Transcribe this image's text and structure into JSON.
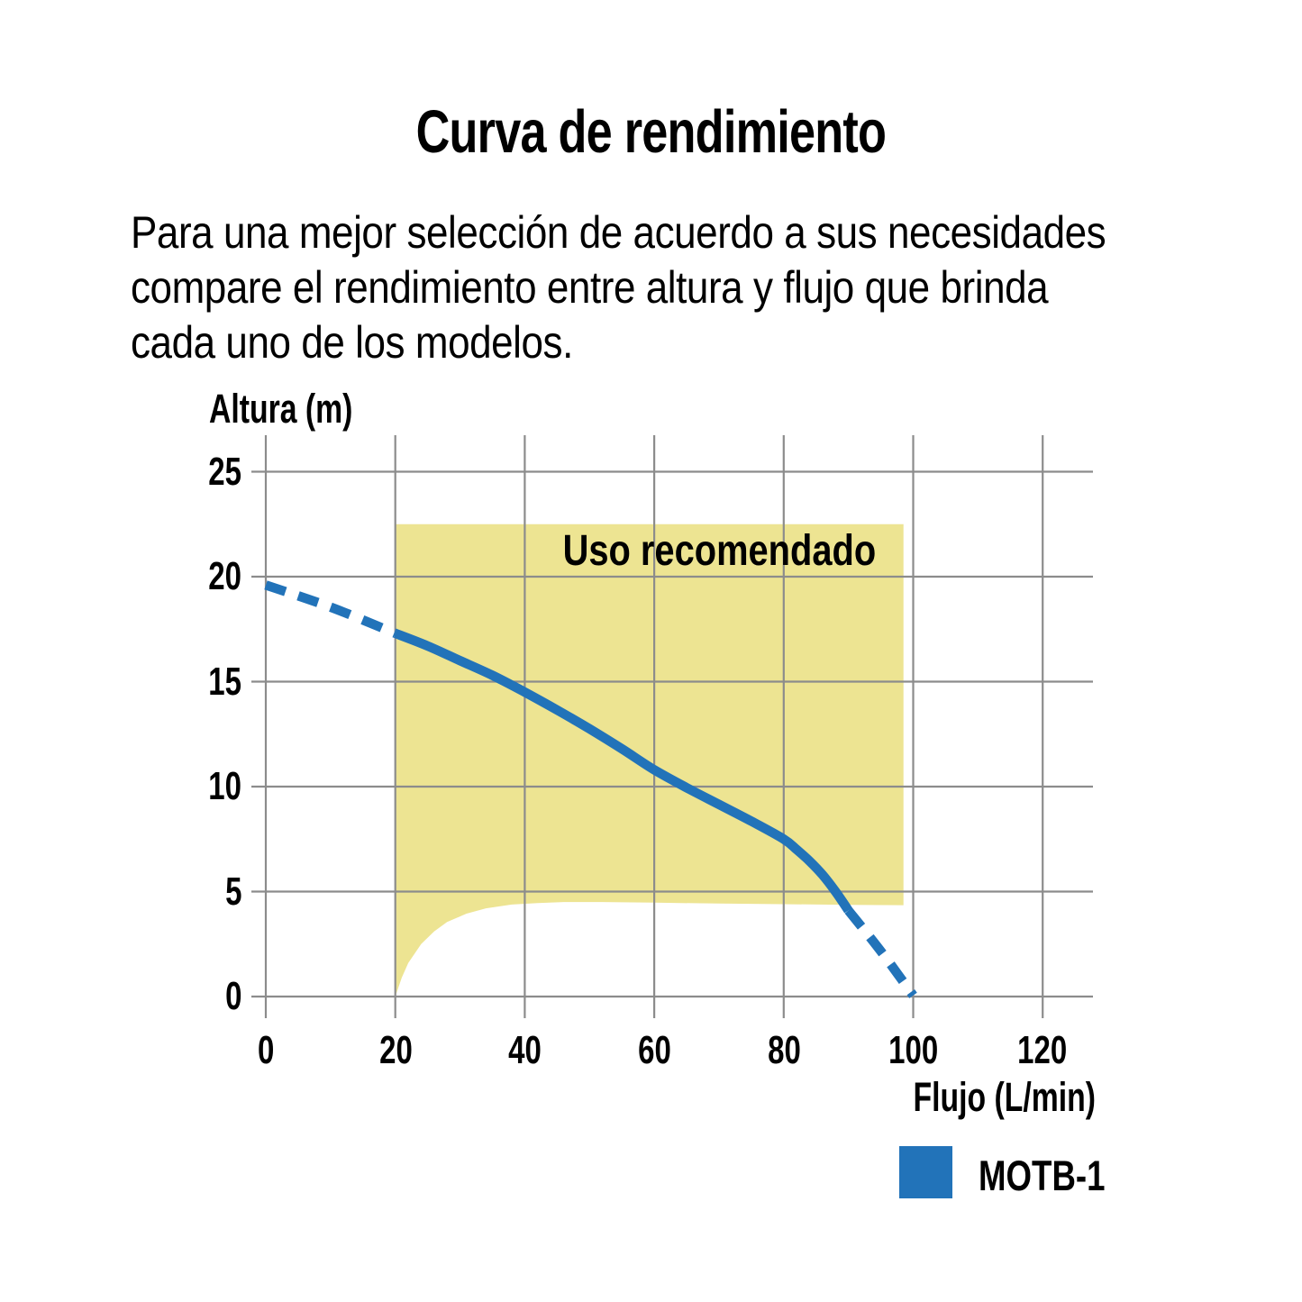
{
  "figure": {
    "title": "Curva de rendimiento",
    "description_lines": [
      "Para una mejor selección de acuerdo a sus necesidades",
      "compare el rendimiento entre altura y flujo que brinda",
      "cada uno de los modelos."
    ]
  },
  "colors": {
    "series_blue": "#2273B9",
    "region_yellow": "#EDE492",
    "grid_gray": "#8C8C8C",
    "text_black": "#000000"
  },
  "chart_data": {
    "type": "line",
    "title": "Curva de rendimiento",
    "xlabel": "Flujo (L/min)",
    "ylabel": "Altura (m)",
    "xlim": [
      0,
      120
    ],
    "ylim": [
      0,
      25
    ],
    "x_ticks": [
      0,
      20,
      40,
      60,
      80,
      100,
      120
    ],
    "y_ticks": [
      0,
      5,
      10,
      15,
      20,
      25
    ],
    "grid": true,
    "recommended_region": {
      "label": "Uso recomendado",
      "x_range": [
        20,
        98.5
      ],
      "y_top": 22.5,
      "bottom_edge": [
        [
          20,
          0
        ],
        [
          21,
          0.9
        ],
        [
          22,
          1.6
        ],
        [
          24,
          2.5
        ],
        [
          26,
          3.1
        ],
        [
          28,
          3.55
        ],
        [
          31,
          3.95
        ],
        [
          34,
          4.2
        ],
        [
          38,
          4.38
        ],
        [
          42,
          4.45
        ],
        [
          46,
          4.5
        ],
        [
          52,
          4.5
        ],
        [
          60,
          4.47
        ],
        [
          70,
          4.43
        ],
        [
          80,
          4.4
        ],
        [
          90,
          4.37
        ],
        [
          98.5,
          4.35
        ]
      ]
    },
    "series": [
      {
        "name": "MOTB-1",
        "color": "#2273B9",
        "segments": [
          {
            "style": "dashed",
            "points": [
              [
                0,
                19.6
              ],
              [
                10,
                18.55
              ],
              [
                20,
                17.3
              ]
            ]
          },
          {
            "style": "solid",
            "points": [
              [
                20,
                17.3
              ],
              [
                25,
                16.7
              ],
              [
                30,
                16.0
              ],
              [
                35,
                15.3
              ],
              [
                40,
                14.5
              ],
              [
                45,
                13.65
              ],
              [
                50,
                12.75
              ],
              [
                55,
                11.8
              ],
              [
                60,
                10.8
              ],
              [
                65,
                9.95
              ],
              [
                70,
                9.15
              ],
              [
                75,
                8.35
              ],
              [
                80,
                7.5
              ],
              [
                82,
                7.0
              ],
              [
                84,
                6.45
              ],
              [
                86,
                5.8
              ],
              [
                88,
                5.0
              ],
              [
                90,
                4.1
              ]
            ]
          },
          {
            "style": "dashed",
            "points": [
              [
                90,
                4.1
              ],
              [
                93,
                2.95
              ],
              [
                96,
                1.75
              ],
              [
                100,
                0.05
              ]
            ]
          }
        ]
      }
    ],
    "legend": [
      {
        "label": "MOTB-1",
        "color": "#2273B9"
      }
    ],
    "legend_position": "bottom-right"
  }
}
